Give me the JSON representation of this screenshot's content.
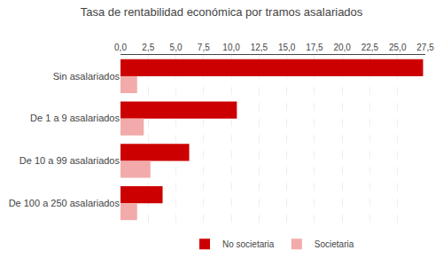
{
  "chart_data": {
    "type": "bar",
    "orientation": "horizontal",
    "title": "Tasa de rentabilidad económica por tramos asalariados",
    "categories": [
      "Sin asalariados",
      "De 1 a 9 asalariados",
      "De 10 a 99 asalariados",
      "De 100 a 250 asalariados"
    ],
    "series": [
      {
        "name": "No societaria",
        "color": "#cc0000",
        "values": [
          27.3,
          10.5,
          6.2,
          3.8
        ]
      },
      {
        "name": "Societaria",
        "color": "#f2aaaa",
        "values": [
          1.5,
          2.1,
          2.7,
          1.5
        ]
      }
    ],
    "xlim": [
      0,
      27.5
    ],
    "xticks": [
      {
        "value": 0.0,
        "label": "0,0"
      },
      {
        "value": 2.5,
        "label": "2,5"
      },
      {
        "value": 5.0,
        "label": "5,0"
      },
      {
        "value": 7.5,
        "label": "7,5"
      },
      {
        "value": 10.0,
        "label": "10,0"
      },
      {
        "value": 12.5,
        "label": "12,5"
      },
      {
        "value": 15.0,
        "label": "15,0"
      },
      {
        "value": 17.5,
        "label": "17,5"
      },
      {
        "value": 20.0,
        "label": "20,0"
      },
      {
        "value": 22.5,
        "label": "22,5"
      },
      {
        "value": 25.0,
        "label": "25,0"
      },
      {
        "value": 27.5,
        "label": "27,5"
      }
    ],
    "grid": true,
    "legend": "bottom"
  }
}
